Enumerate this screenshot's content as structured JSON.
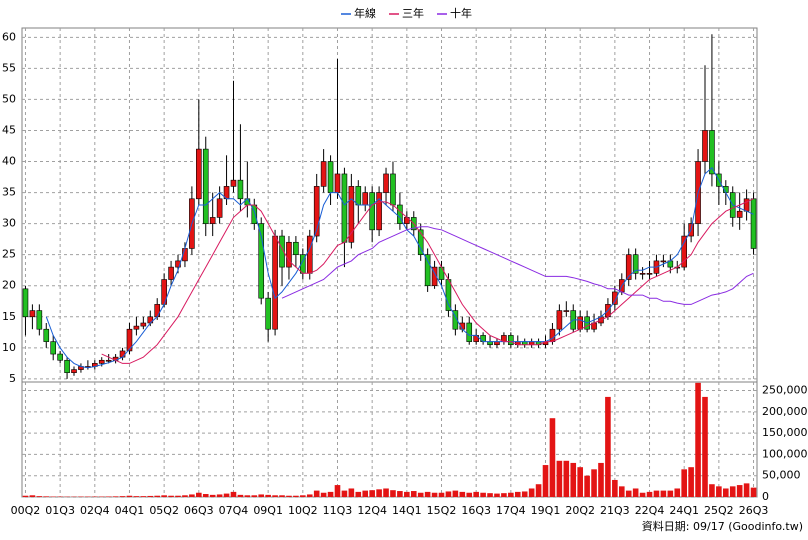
{
  "chart_data": [
    {
      "type": "candlestick",
      "categories": [
        "00Q2",
        null,
        null,
        null,
        null,
        "01Q3",
        null,
        null,
        null,
        null,
        "02Q4",
        null,
        null,
        null,
        null,
        "04Q1",
        null,
        null,
        null,
        null,
        "05Q2",
        null,
        null,
        null,
        null,
        "06Q3",
        null,
        null,
        null,
        null,
        "07Q4",
        null,
        null,
        null,
        null,
        "09Q1",
        null,
        null,
        null,
        null,
        "10Q2",
        null,
        null,
        null,
        null,
        "11Q3",
        null,
        null,
        null,
        null,
        "12Q4",
        null,
        null,
        null,
        null,
        "14Q1",
        null,
        null,
        null,
        null,
        "15Q2",
        null,
        null,
        null,
        null,
        "16Q3",
        null,
        null,
        null,
        null,
        "17Q4",
        null,
        null,
        null,
        null,
        "19Q1",
        null,
        null,
        null,
        null,
        "20Q2",
        null,
        null,
        null,
        null,
        "21Q3",
        null,
        null,
        null,
        null,
        "22Q4",
        null,
        null,
        null,
        null,
        "24Q1",
        null,
        null,
        null,
        null,
        "25Q2",
        null,
        null,
        null,
        null,
        "26Q3"
      ],
      "open": [
        19.5,
        15,
        16,
        13,
        11,
        9,
        8,
        6,
        6.5,
        7,
        7,
        7.5,
        8,
        8,
        8.5,
        9.5,
        13,
        13.5,
        14,
        15,
        17,
        21,
        23,
        24,
        26,
        34,
        42,
        30,
        31,
        34,
        36,
        37,
        34,
        33,
        30,
        18,
        13,
        28,
        23,
        27,
        25,
        22,
        28,
        36,
        40,
        35,
        38,
        27,
        36,
        33,
        35,
        29,
        35,
        38,
        33,
        30,
        31,
        29,
        25,
        20,
        23,
        21,
        16,
        13,
        14,
        11,
        12,
        11,
        10.5,
        11,
        12,
        10.5,
        11,
        10.5,
        11,
        10.5,
        11,
        13,
        16,
        16,
        13,
        15,
        13,
        14,
        15,
        17,
        19,
        21,
        25,
        22,
        22,
        22,
        24,
        24,
        23,
        23,
        28,
        30,
        40,
        45,
        38,
        36,
        35,
        31,
        32,
        34
      ],
      "high": [
        20,
        17,
        17,
        14,
        12,
        9.5,
        8.5,
        7,
        7.5,
        8,
        8,
        8.5,
        9,
        9,
        10,
        14,
        15,
        15,
        16,
        18,
        22,
        24,
        25,
        27,
        36,
        50,
        44,
        35,
        36,
        41,
        53,
        46,
        40,
        34,
        31,
        19,
        29,
        29,
        28,
        28,
        26,
        29,
        38,
        42,
        41,
        56.5,
        39,
        38,
        37,
        36,
        36,
        36,
        39,
        40,
        35,
        32,
        32,
        30,
        26,
        24,
        24,
        22,
        17,
        15,
        15,
        13,
        12.5,
        12,
        11.5,
        12.5,
        12.5,
        12,
        11.5,
        11.5,
        11.5,
        12,
        14,
        17,
        17.5,
        17,
        16,
        16,
        15.5,
        16,
        18,
        20,
        22,
        26,
        26,
        23,
        24,
        25,
        25,
        25,
        24,
        30,
        31,
        42,
        55.5,
        60.5,
        40,
        37,
        36,
        35,
        35.5,
        35
      ],
      "low": [
        12,
        13,
        12,
        10,
        8,
        7.5,
        5,
        5.5,
        6,
        6.5,
        6.5,
        7,
        7.5,
        7.5,
        8,
        9,
        12,
        13,
        13.5,
        14.5,
        16.5,
        20,
        22,
        23,
        25,
        33,
        28,
        28,
        30,
        33,
        35,
        32,
        31,
        29,
        17,
        11,
        12,
        20,
        21,
        23,
        21,
        21,
        27,
        35,
        33,
        34,
        23,
        26,
        30,
        32,
        27,
        28,
        33,
        32,
        29,
        29,
        28,
        24,
        19,
        19.5,
        20,
        15,
        12,
        12.5,
        10.5,
        10.5,
        10.5,
        10,
        10,
        10.5,
        10,
        10,
        10,
        10,
        10,
        10,
        10.5,
        12,
        15,
        12.5,
        12.5,
        12.5,
        12.5,
        13.5,
        14.5,
        16,
        18.5,
        20,
        21,
        21,
        21,
        21.5,
        23,
        22,
        22,
        22.5,
        27,
        28,
        38,
        36,
        33,
        33,
        29.5,
        29,
        30.5,
        25
      ],
      "close": [
        15,
        16,
        13,
        11,
        9,
        8,
        6,
        6.5,
        7,
        7,
        7.5,
        8,
        8,
        8.5,
        9.5,
        13,
        13.5,
        14,
        15,
        17,
        21,
        23,
        24,
        26,
        34,
        42,
        30,
        31,
        34,
        36,
        37,
        34,
        33,
        30,
        18,
        13,
        28,
        23,
        27,
        25,
        22,
        28,
        36,
        40,
        35,
        38,
        27,
        36,
        33,
        35,
        29,
        35,
        38,
        33,
        30,
        31,
        29,
        25,
        20,
        23,
        21,
        16,
        13,
        14,
        11,
        12,
        11,
        10.5,
        11,
        12,
        10.5,
        11,
        10.5,
        11,
        10.5,
        11,
        13,
        16,
        16,
        13,
        15,
        13,
        14,
        15,
        17,
        19,
        21,
        25,
        22,
        22,
        22,
        24,
        24,
        23,
        23,
        28,
        30,
        40,
        45,
        38,
        36,
        35,
        31,
        32,
        34,
        26
      ],
      "series": [
        {
          "name": "年線",
          "color": "#1a5fd6",
          "values": [
            null,
            null,
            null,
            15,
            12,
            10,
            8.5,
            7.5,
            7,
            6.8,
            7,
            7.3,
            7.6,
            8,
            8.5,
            9.8,
            11,
            12.5,
            14,
            15,
            17,
            20,
            22.5,
            26,
            30,
            33,
            33,
            34,
            35,
            34,
            34,
            33,
            34,
            32,
            28,
            22,
            18,
            19,
            20.5,
            22,
            24,
            26,
            29,
            33,
            35,
            35,
            33,
            34,
            33,
            33,
            33,
            34,
            33,
            32,
            31,
            29,
            28,
            26,
            24,
            22,
            20,
            17,
            15,
            13,
            12,
            12,
            11,
            11,
            11,
            11,
            11,
            11,
            11,
            11,
            11,
            11,
            11.5,
            12.5,
            13.5,
            14.5,
            14.5,
            14,
            14.5,
            15,
            16,
            17.5,
            20,
            21.5,
            22.5,
            22.5,
            23,
            23,
            23.5,
            24,
            25,
            27,
            29,
            35,
            38,
            39,
            37,
            35,
            33,
            32.5,
            32,
            31.5
          ]
        },
        {
          "name": "三年",
          "color": "#d81b60",
          "values": [
            null,
            null,
            null,
            null,
            null,
            null,
            null,
            null,
            null,
            null,
            null,
            9,
            8.5,
            8,
            7.5,
            7.5,
            8,
            8.5,
            9.5,
            10.5,
            12,
            13.5,
            15,
            17,
            19,
            21,
            23,
            25,
            27,
            29,
            31,
            32,
            33,
            33,
            32,
            30,
            28,
            26,
            24,
            23,
            22,
            22,
            22.5,
            23.5,
            25,
            26.5,
            27,
            28.5,
            30,
            31.5,
            33,
            33.5,
            33.5,
            33,
            32,
            31,
            30,
            28.5,
            27,
            25,
            23,
            21,
            19,
            17,
            15.5,
            14,
            13,
            12,
            11.5,
            11,
            11,
            10.5,
            10.5,
            10.5,
            10.5,
            11,
            11,
            11.5,
            12,
            12.5,
            13,
            13.5,
            14,
            14.5,
            15,
            16,
            17,
            18,
            19,
            20,
            21,
            21.5,
            22,
            22.5,
            23,
            24,
            25,
            27,
            28.5,
            30,
            31,
            32,
            32.5,
            33,
            33.5,
            34
          ]
        },
        {
          "name": "十年",
          "color": "#8a2be2",
          "values": [
            null,
            null,
            null,
            null,
            null,
            null,
            null,
            null,
            null,
            null,
            null,
            null,
            null,
            null,
            null,
            null,
            null,
            null,
            null,
            null,
            null,
            null,
            null,
            null,
            null,
            null,
            null,
            null,
            null,
            null,
            null,
            null,
            null,
            null,
            null,
            null,
            null,
            18,
            18.5,
            19,
            19.5,
            20,
            20.5,
            21,
            22,
            23,
            23.5,
            24,
            25,
            25.5,
            26,
            27,
            27.5,
            28,
            28.5,
            29,
            29.3,
            29.5,
            29.5,
            29.2,
            29,
            28.5,
            28,
            27.5,
            27,
            26.5,
            26,
            25.5,
            25,
            24.5,
            24,
            23.5,
            23,
            22.5,
            22,
            21.5,
            21.5,
            21.5,
            21.5,
            21.3,
            21,
            20.7,
            20.3,
            20,
            19.5,
            19.5,
            19,
            18.5,
            18.5,
            18.5,
            18,
            18,
            17.5,
            17.5,
            17.2,
            17,
            17,
            17.5,
            18,
            18.5,
            18.7,
            19,
            19.5,
            20.5,
            21.5,
            22
          ]
        }
      ],
      "ylim": [
        4.5,
        61.5
      ],
      "yticks": [
        5,
        10,
        15,
        20,
        25,
        30,
        35,
        40,
        45,
        50,
        55,
        60
      ],
      "grid": true,
      "up_color": "#e31414",
      "down_color": "#22c022"
    },
    {
      "type": "bar",
      "values": [
        3000,
        4000,
        2000,
        1500,
        1000,
        1000,
        800,
        800,
        1000,
        1000,
        1000,
        1000,
        1200,
        1500,
        2000,
        3000,
        2000,
        2000,
        2500,
        3000,
        4000,
        3000,
        3000,
        4000,
        6000,
        10000,
        7000,
        5000,
        6000,
        8000,
        12000,
        5000,
        4000,
        4000,
        6000,
        5000,
        4000,
        4000,
        3000,
        3000,
        4000,
        6000,
        15000,
        10000,
        12000,
        28000,
        15000,
        20000,
        12000,
        15000,
        16000,
        18000,
        20000,
        16000,
        14000,
        12000,
        14000,
        10000,
        12000,
        10000,
        10000,
        13000,
        15000,
        12000,
        10000,
        12000,
        10000,
        9000,
        8000,
        9000,
        10000,
        12000,
        13000,
        20000,
        30000,
        75000,
        185000,
        85000,
        85000,
        80000,
        70000,
        50000,
        65000,
        80000,
        235000,
        40000,
        25000,
        15000,
        20000,
        10000,
        12000,
        15000,
        15000,
        15000,
        20000,
        65000,
        70000,
        268000,
        235000,
        30000,
        25000,
        20000,
        25000,
        28000,
        32000,
        22000
      ],
      "color": "#e31414",
      "ylim": [
        0,
        270000
      ],
      "yticks": [
        {
          "value": 0,
          "label": "0"
        },
        {
          "value": 50000,
          "label": "50,000"
        },
        {
          "value": 100000,
          "label": "100,000"
        },
        {
          "value": 150000,
          "label": "150,000"
        },
        {
          "value": 200000,
          "label": "200,000"
        },
        {
          "value": 250000,
          "label": "250,000"
        }
      ],
      "grid": true
    }
  ],
  "footer": "資料日期: 09/17 (Goodinfo.tw)"
}
